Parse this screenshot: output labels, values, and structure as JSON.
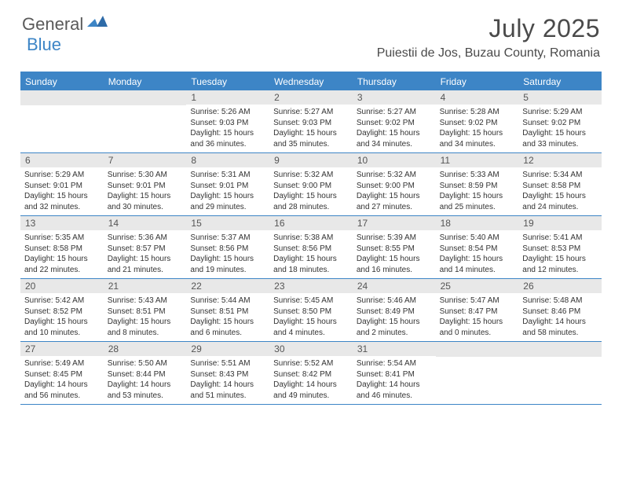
{
  "brand": {
    "part1": "General",
    "part2": "Blue"
  },
  "title": "July 2025",
  "location": "Puiestii de Jos, Buzau County, Romania",
  "weekdays": [
    "Sunday",
    "Monday",
    "Tuesday",
    "Wednesday",
    "Thursday",
    "Friday",
    "Saturday"
  ],
  "colors": {
    "accent": "#3d85c6",
    "header_bg": "#3d85c6",
    "daynum_bg": "#e8e8e8",
    "text": "#333333"
  },
  "weeks": [
    [
      null,
      null,
      {
        "n": "1",
        "sr": "5:26 AM",
        "ss": "9:03 PM",
        "dl1": "15 hours",
        "dl2": "and 36 minutes."
      },
      {
        "n": "2",
        "sr": "5:27 AM",
        "ss": "9:03 PM",
        "dl1": "15 hours",
        "dl2": "and 35 minutes."
      },
      {
        "n": "3",
        "sr": "5:27 AM",
        "ss": "9:02 PM",
        "dl1": "15 hours",
        "dl2": "and 34 minutes."
      },
      {
        "n": "4",
        "sr": "5:28 AM",
        "ss": "9:02 PM",
        "dl1": "15 hours",
        "dl2": "and 34 minutes."
      },
      {
        "n": "5",
        "sr": "5:29 AM",
        "ss": "9:02 PM",
        "dl1": "15 hours",
        "dl2": "and 33 minutes."
      }
    ],
    [
      {
        "n": "6",
        "sr": "5:29 AM",
        "ss": "9:01 PM",
        "dl1": "15 hours",
        "dl2": "and 32 minutes."
      },
      {
        "n": "7",
        "sr": "5:30 AM",
        "ss": "9:01 PM",
        "dl1": "15 hours",
        "dl2": "and 30 minutes."
      },
      {
        "n": "8",
        "sr": "5:31 AM",
        "ss": "9:01 PM",
        "dl1": "15 hours",
        "dl2": "and 29 minutes."
      },
      {
        "n": "9",
        "sr": "5:32 AM",
        "ss": "9:00 PM",
        "dl1": "15 hours",
        "dl2": "and 28 minutes."
      },
      {
        "n": "10",
        "sr": "5:32 AM",
        "ss": "9:00 PM",
        "dl1": "15 hours",
        "dl2": "and 27 minutes."
      },
      {
        "n": "11",
        "sr": "5:33 AM",
        "ss": "8:59 PM",
        "dl1": "15 hours",
        "dl2": "and 25 minutes."
      },
      {
        "n": "12",
        "sr": "5:34 AM",
        "ss": "8:58 PM",
        "dl1": "15 hours",
        "dl2": "and 24 minutes."
      }
    ],
    [
      {
        "n": "13",
        "sr": "5:35 AM",
        "ss": "8:58 PM",
        "dl1": "15 hours",
        "dl2": "and 22 minutes."
      },
      {
        "n": "14",
        "sr": "5:36 AM",
        "ss": "8:57 PM",
        "dl1": "15 hours",
        "dl2": "and 21 minutes."
      },
      {
        "n": "15",
        "sr": "5:37 AM",
        "ss": "8:56 PM",
        "dl1": "15 hours",
        "dl2": "and 19 minutes."
      },
      {
        "n": "16",
        "sr": "5:38 AM",
        "ss": "8:56 PM",
        "dl1": "15 hours",
        "dl2": "and 18 minutes."
      },
      {
        "n": "17",
        "sr": "5:39 AM",
        "ss": "8:55 PM",
        "dl1": "15 hours",
        "dl2": "and 16 minutes."
      },
      {
        "n": "18",
        "sr": "5:40 AM",
        "ss": "8:54 PM",
        "dl1": "15 hours",
        "dl2": "and 14 minutes."
      },
      {
        "n": "19",
        "sr": "5:41 AM",
        "ss": "8:53 PM",
        "dl1": "15 hours",
        "dl2": "and 12 minutes."
      }
    ],
    [
      {
        "n": "20",
        "sr": "5:42 AM",
        "ss": "8:52 PM",
        "dl1": "15 hours",
        "dl2": "and 10 minutes."
      },
      {
        "n": "21",
        "sr": "5:43 AM",
        "ss": "8:51 PM",
        "dl1": "15 hours",
        "dl2": "and 8 minutes."
      },
      {
        "n": "22",
        "sr": "5:44 AM",
        "ss": "8:51 PM",
        "dl1": "15 hours",
        "dl2": "and 6 minutes."
      },
      {
        "n": "23",
        "sr": "5:45 AM",
        "ss": "8:50 PM",
        "dl1": "15 hours",
        "dl2": "and 4 minutes."
      },
      {
        "n": "24",
        "sr": "5:46 AM",
        "ss": "8:49 PM",
        "dl1": "15 hours",
        "dl2": "and 2 minutes."
      },
      {
        "n": "25",
        "sr": "5:47 AM",
        "ss": "8:47 PM",
        "dl1": "15 hours",
        "dl2": "and 0 minutes."
      },
      {
        "n": "26",
        "sr": "5:48 AM",
        "ss": "8:46 PM",
        "dl1": "14 hours",
        "dl2": "and 58 minutes."
      }
    ],
    [
      {
        "n": "27",
        "sr": "5:49 AM",
        "ss": "8:45 PM",
        "dl1": "14 hours",
        "dl2": "and 56 minutes."
      },
      {
        "n": "28",
        "sr": "5:50 AM",
        "ss": "8:44 PM",
        "dl1": "14 hours",
        "dl2": "and 53 minutes."
      },
      {
        "n": "29",
        "sr": "5:51 AM",
        "ss": "8:43 PM",
        "dl1": "14 hours",
        "dl2": "and 51 minutes."
      },
      {
        "n": "30",
        "sr": "5:52 AM",
        "ss": "8:42 PM",
        "dl1": "14 hours",
        "dl2": "and 49 minutes."
      },
      {
        "n": "31",
        "sr": "5:54 AM",
        "ss": "8:41 PM",
        "dl1": "14 hours",
        "dl2": "and 46 minutes."
      },
      null,
      null
    ]
  ],
  "labels": {
    "sunrise": "Sunrise:",
    "sunset": "Sunset:",
    "daylight": "Daylight:"
  }
}
